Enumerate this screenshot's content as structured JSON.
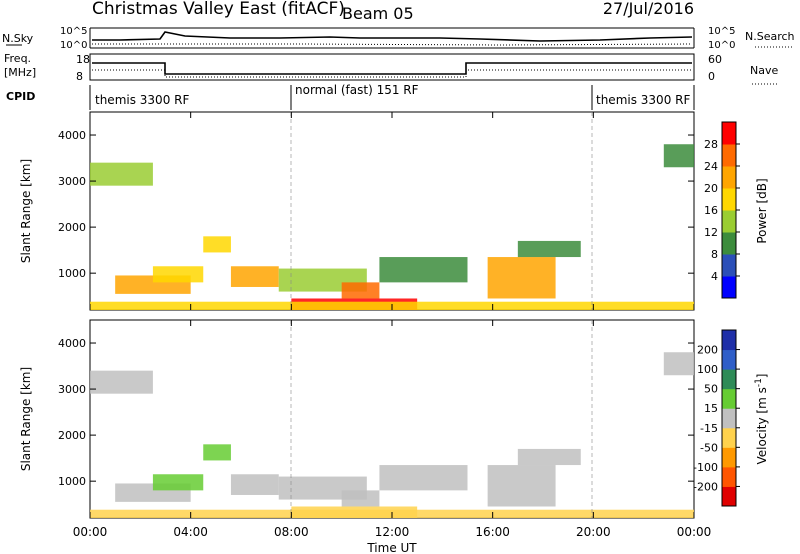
{
  "header": {
    "title": "Christmas Valley East (fitACF)",
    "beam": "Beam 05",
    "date": "27/Jul/2016"
  },
  "nsky_panel": {
    "left_label": "N.Sky",
    "left_ticks": [
      "10^5",
      "10^0"
    ],
    "right_label": "N.Search",
    "right_ticks": [
      "10^5",
      "10^0"
    ]
  },
  "freq_panel": {
    "left_label_1": "Freq.",
    "left_label_2": "[MHz]",
    "left_ticks": [
      "18",
      "8"
    ],
    "right_label": "Nave",
    "right_ticks": [
      "60",
      "0"
    ]
  },
  "cpid_panel": {
    "label": "CPID",
    "segments": [
      "themis 3300 RF",
      "normal (fast) 151 RF",
      "themis 3300 RF"
    ]
  },
  "chart_data": [
    {
      "type": "heatmap",
      "panel": "power",
      "ylabel": "Slant Range [km]",
      "xlabel": "",
      "ylim": [
        200,
        4500
      ],
      "y_ticks": [
        "4000",
        "3000",
        "2000",
        "1000"
      ],
      "y_tick_values": [
        4000,
        3000,
        2000,
        1000
      ],
      "colorbar_label": "Power [dB]",
      "colorbar_ticks": [
        "28",
        "24",
        "20",
        "16",
        "12",
        "8",
        "4"
      ],
      "colorbar_colors": [
        "#0000ff",
        "#2b4fb8",
        "#3c8c3c",
        "#9acd32",
        "#ffd700",
        "#ffa500",
        "#ff6a00",
        "#ff0000"
      ],
      "patches": [
        {
          "t0": 0.0,
          "t1": 2.5,
          "r0": 2900,
          "r1": 3400,
          "value": 12
        },
        {
          "t0": 1.0,
          "t1": 4.0,
          "r0": 550,
          "r1": 950,
          "value": 22
        },
        {
          "t0": 2.5,
          "t1": 4.5,
          "r0": 800,
          "r1": 1150,
          "value": 16
        },
        {
          "t0": 4.5,
          "t1": 5.6,
          "r0": 1450,
          "r1": 1800,
          "value": 18
        },
        {
          "t0": 5.6,
          "t1": 7.5,
          "r0": 700,
          "r1": 1150,
          "value": 20
        },
        {
          "t0": 7.5,
          "t1": 11.0,
          "r0": 600,
          "r1": 1100,
          "value": 14
        },
        {
          "t0": 8.0,
          "t1": 13.0,
          "r0": 200,
          "r1": 450,
          "value": 28
        },
        {
          "t0": 10.0,
          "t1": 11.5,
          "r0": 450,
          "r1": 800,
          "value": 24
        },
        {
          "t0": 11.5,
          "t1": 15.0,
          "r0": 800,
          "r1": 1350,
          "value": 10
        },
        {
          "t0": 15.8,
          "t1": 18.5,
          "r0": 450,
          "r1": 1350,
          "value": 22
        },
        {
          "t0": 17.0,
          "t1": 19.5,
          "r0": 1350,
          "r1": 1700,
          "value": 10
        },
        {
          "t0": 22.8,
          "t1": 24.0,
          "r0": 3300,
          "r1": 3800,
          "value": 10
        },
        {
          "t0": 0.0,
          "t1": 24.0,
          "r0": 200,
          "r1": 380,
          "value": 16
        }
      ]
    },
    {
      "type": "heatmap",
      "panel": "velocity",
      "ylabel": "Slant Range [km]",
      "xlabel": "Time UT",
      "ylim": [
        200,
        4500
      ],
      "y_ticks": [
        "4000",
        "3000",
        "2000",
        "1000"
      ],
      "y_tick_values": [
        4000,
        3000,
        2000,
        1000
      ],
      "x_ticks": [
        "00:00",
        "04:00",
        "08:00",
        "12:00",
        "16:00",
        "20:00",
        "00:00"
      ],
      "colorbar_label": "Velocity [m s^-1]",
      "colorbar_ticks": [
        "200",
        "100",
        "50",
        "15",
        "-15",
        "-50",
        "-100",
        "-200"
      ],
      "colorbar_colors": [
        "#1f2fa8",
        "#2f5ec8",
        "#2e8b57",
        "#66cc33",
        "#c0c0c0",
        "#ffd24d",
        "#ff9900",
        "#ff5500",
        "#e00000"
      ],
      "patches": [
        {
          "t0": 0.0,
          "t1": 2.5,
          "r0": 2900,
          "r1": 3400,
          "value": 0
        },
        {
          "t0": 1.0,
          "t1": 4.0,
          "r0": 550,
          "r1": 950,
          "value": 0
        },
        {
          "t0": 2.5,
          "t1": 4.5,
          "r0": 800,
          "r1": 1150,
          "value": 20
        },
        {
          "t0": 4.5,
          "t1": 5.6,
          "r0": 1450,
          "r1": 1800,
          "value": 30
        },
        {
          "t0": 5.6,
          "t1": 7.5,
          "r0": 700,
          "r1": 1150,
          "value": 0
        },
        {
          "t0": 7.5,
          "t1": 11.0,
          "r0": 600,
          "r1": 1100,
          "value": 0
        },
        {
          "t0": 8.0,
          "t1": 13.0,
          "r0": 200,
          "r1": 450,
          "value": -30
        },
        {
          "t0": 10.0,
          "t1": 11.5,
          "r0": 450,
          "r1": 800,
          "value": 0
        },
        {
          "t0": 11.5,
          "t1": 15.0,
          "r0": 800,
          "r1": 1350,
          "value": 0
        },
        {
          "t0": 15.8,
          "t1": 18.5,
          "r0": 450,
          "r1": 1350,
          "value": 0
        },
        {
          "t0": 17.0,
          "t1": 19.5,
          "r0": 1350,
          "r1": 1700,
          "value": 0
        },
        {
          "t0": 22.8,
          "t1": 24.0,
          "r0": 3300,
          "r1": 3800,
          "value": 0
        },
        {
          "t0": 0.0,
          "t1": 24.0,
          "r0": 200,
          "r1": 380,
          "value": -30
        }
      ]
    }
  ]
}
